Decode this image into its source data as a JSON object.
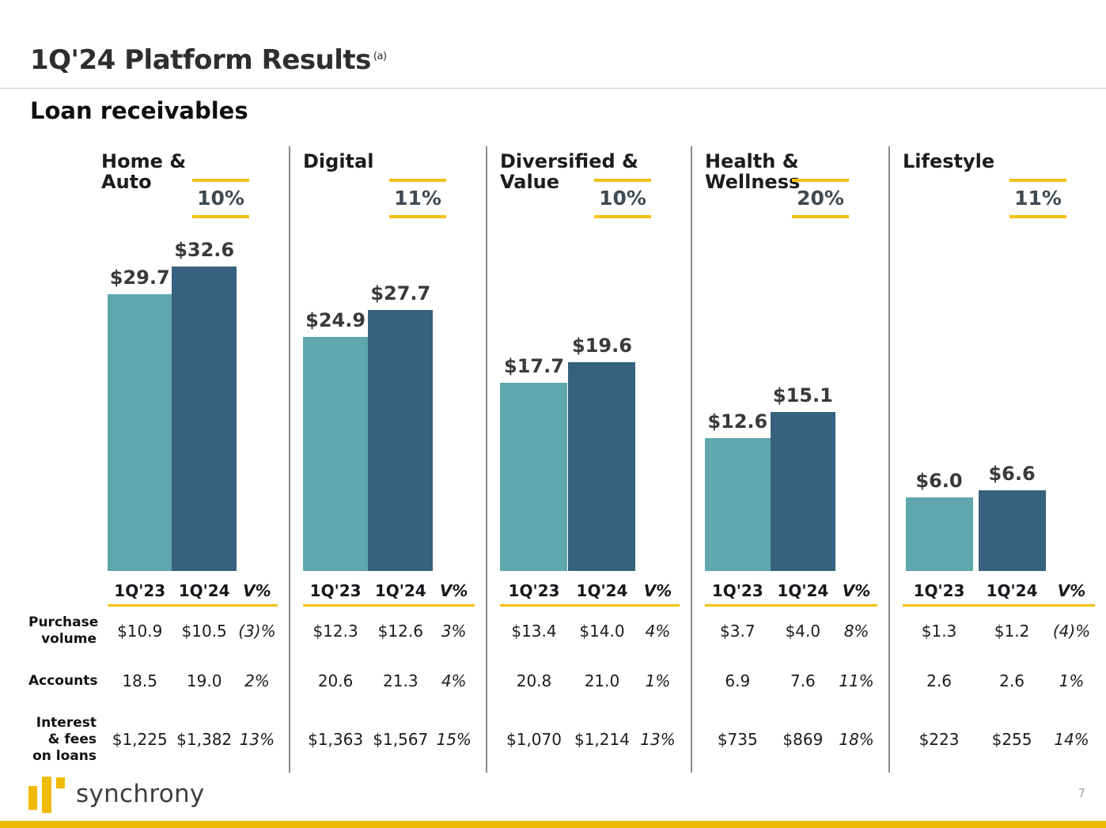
{
  "slide": {
    "title": "1Q'24 Platform Results",
    "footnote_marker": "(a)",
    "subtitle": "Loan receivables",
    "logo_text": "synchrony",
    "page_number": "7"
  },
  "colors": {
    "bar_1q23": "#5FA7AD",
    "bar_1q24": "#36617F",
    "gold": "#F3C211",
    "strip_gold": "#EFBA00",
    "pct_text": "#3E4A54"
  },
  "row_labels": [
    "Purchase volume",
    "Accounts",
    "Interest & fees on loans"
  ],
  "chart_data": [
    {
      "type": "bar",
      "title": "Home & Auto",
      "title_lines": [
        "Home &",
        "Auto"
      ],
      "growth_label": "10%",
      "categories": [
        "1Q'23",
        "1Q'24"
      ],
      "values": [
        29.7,
        32.6
      ],
      "bar_labels": [
        "$29.7",
        "$32.6"
      ],
      "table": {
        "headers": [
          "1Q'23",
          "1Q'24",
          "V%"
        ],
        "rows": [
          [
            "$10.9",
            "$10.5",
            "(3)%"
          ],
          [
            "18.5",
            "19.0",
            "2%"
          ],
          [
            "$1,225",
            "$1,382",
            "13%"
          ]
        ]
      }
    },
    {
      "type": "bar",
      "title": "Digital",
      "title_lines": [
        "Digital"
      ],
      "growth_label": "11%",
      "categories": [
        "1Q'23",
        "1Q'24"
      ],
      "values": [
        24.9,
        27.7
      ],
      "bar_labels": [
        "$24.9",
        "$27.7"
      ],
      "table": {
        "headers": [
          "1Q'23",
          "1Q'24",
          "V%"
        ],
        "rows": [
          [
            "$12.3",
            "$12.6",
            "3%"
          ],
          [
            "20.6",
            "21.3",
            "4%"
          ],
          [
            "$1,363",
            "$1,567",
            "15%"
          ]
        ]
      }
    },
    {
      "type": "bar",
      "title": "Diversified & Value",
      "title_lines": [
        "Diversified &",
        "Value"
      ],
      "growth_label": "10%",
      "categories": [
        "1Q'23",
        "1Q'24"
      ],
      "values": [
        17.7,
        19.6
      ],
      "bar_labels": [
        "$17.7",
        "$19.6"
      ],
      "table": {
        "headers": [
          "1Q'23",
          "1Q'24",
          "V%"
        ],
        "rows": [
          [
            "$13.4",
            "$14.0",
            "4%"
          ],
          [
            "20.8",
            "21.0",
            "1%"
          ],
          [
            "$1,070",
            "$1,214",
            "13%"
          ]
        ]
      }
    },
    {
      "type": "bar",
      "title": "Health & Wellness",
      "title_lines": [
        "Health &",
        "Wellness"
      ],
      "growth_label": "20%",
      "categories": [
        "1Q'23",
        "1Q'24"
      ],
      "values": [
        12.6,
        15.1
      ],
      "bar_labels": [
        "$12.6",
        "$15.1"
      ],
      "table": {
        "headers": [
          "1Q'23",
          "1Q'24",
          "V%"
        ],
        "rows": [
          [
            "$3.7",
            "$4.0",
            "8%"
          ],
          [
            "6.9",
            "7.6",
            "11%"
          ],
          [
            "$735",
            "$869",
            "18%"
          ]
        ]
      }
    },
    {
      "type": "bar",
      "title": "Lifestyle",
      "title_lines": [
        "Lifestyle"
      ],
      "growth_label": "11%",
      "categories": [
        "1Q'23",
        "1Q'24"
      ],
      "values": [
        6.0,
        6.6
      ],
      "bar_labels": [
        "$6.0",
        "$6.6"
      ],
      "table": {
        "headers": [
          "1Q'23",
          "1Q'24",
          "V%"
        ],
        "rows": [
          [
            "$1.3",
            "$1.2",
            "(4)%"
          ],
          [
            "2.6",
            "2.6",
            "1%"
          ],
          [
            "$223",
            "$255",
            "14%"
          ]
        ]
      }
    }
  ]
}
